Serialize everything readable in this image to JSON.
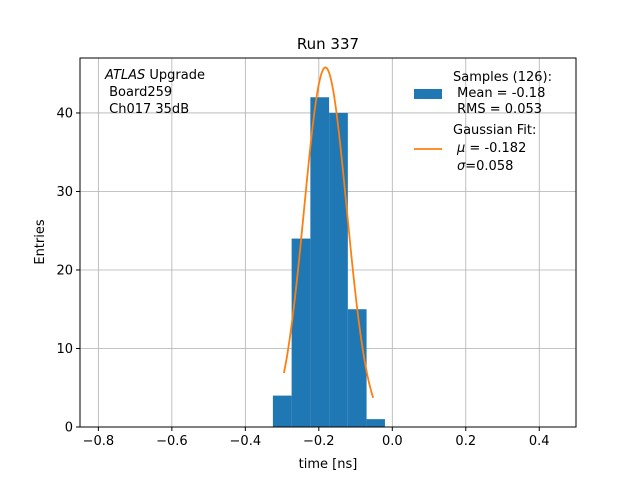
{
  "chart_data": {
    "type": "bar",
    "title": "Run 337",
    "xlabel": "time [ns]",
    "ylabel": "Entries",
    "xlim": [
      -0.85,
      0.5
    ],
    "ylim": [
      0,
      47
    ],
    "xticks": [
      -0.8,
      -0.6,
      -0.4,
      -0.2,
      0.0,
      0.2,
      0.4
    ],
    "xtick_labels": [
      "−0.8",
      "−0.6",
      "−0.4",
      "−0.2",
      "0.0",
      "0.2",
      "0.4"
    ],
    "yticks": [
      0,
      10,
      20,
      30,
      40
    ],
    "ytick_labels": [
      "0",
      "10",
      "20",
      "30",
      "40"
    ],
    "grid": true,
    "annotation": {
      "line1_italic": "ATLAS",
      "line1_rest": " Upgrade",
      "line2": " Board259",
      "line3": " Ch017 35dB"
    },
    "histogram": {
      "name": "Samples (126):",
      "stats": [
        " Mean = -0.18",
        " RMS = 0.053"
      ],
      "color": "#1f77b4",
      "bins": [
        {
          "x0": -0.325,
          "x1": -0.274,
          "count": 4
        },
        {
          "x0": -0.274,
          "x1": -0.223,
          "count": 24
        },
        {
          "x0": -0.223,
          "x1": -0.172,
          "count": 42
        },
        {
          "x0": -0.172,
          "x1": -0.121,
          "count": 40
        },
        {
          "x0": -0.121,
          "x1": -0.07,
          "count": 15
        },
        {
          "x0": -0.07,
          "x1": -0.02,
          "count": 1
        }
      ]
    },
    "fit": {
      "name": "Gaussian Fit:",
      "mu_label": "μ",
      "mu_text": " = -0.182",
      "sigma_label": "σ",
      "sigma_text": "=0.058",
      "color": "#ff7f0e",
      "amplitude": 45.8,
      "mu": -0.182,
      "sigma": 0.058,
      "x_range": [
        -0.295,
        -0.052
      ]
    },
    "legend_position": "top-right"
  }
}
